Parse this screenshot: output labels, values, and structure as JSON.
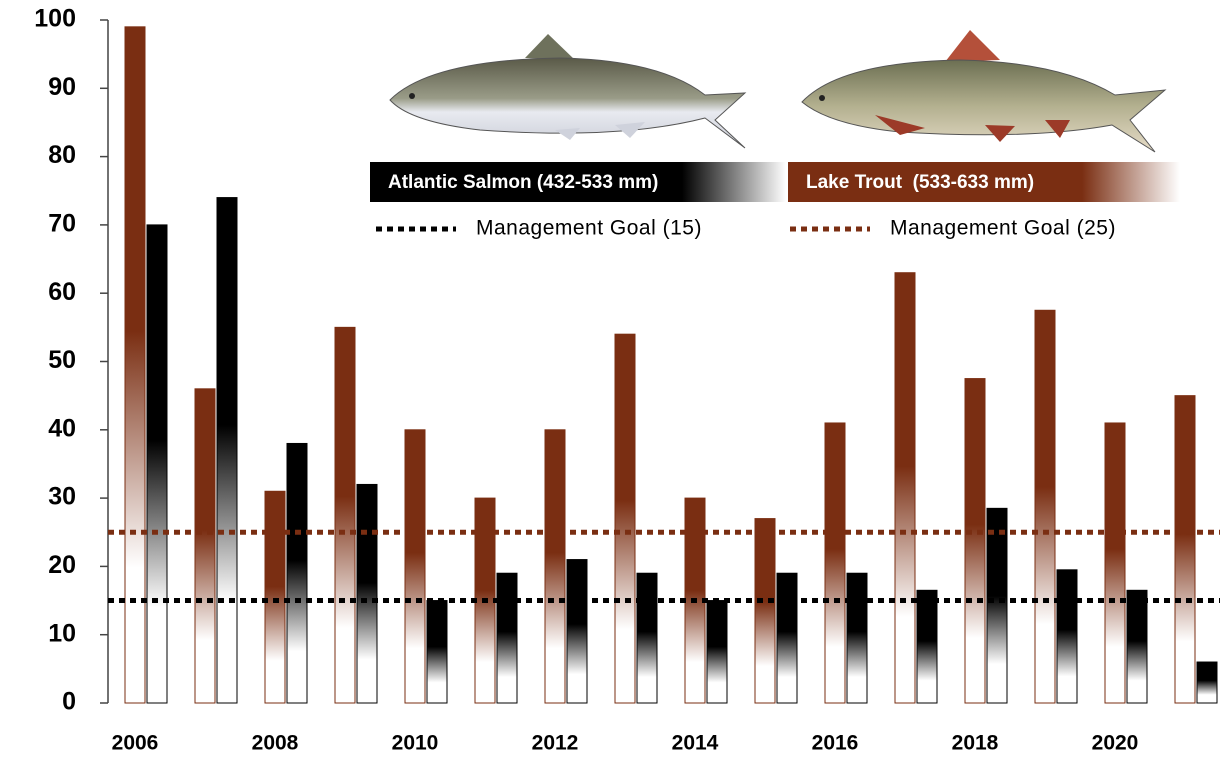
{
  "chart_data": {
    "type": "bar",
    "categories": [
      "2006",
      null,
      "2008",
      null,
      "2010",
      null,
      "2012",
      null,
      "2014",
      null,
      "2016",
      null,
      "2018",
      null,
      "2020",
      null
    ],
    "series": [
      {
        "name": "Atlantic Salmon (432-533 mm)",
        "color": "#000000",
        "values": [
          70,
          74,
          38,
          32,
          15,
          19,
          21,
          19,
          15,
          19,
          19,
          16.5,
          28.5,
          19.5,
          16.5,
          6
        ]
      },
      {
        "name": "Lake Trout  (533-633 mm)",
        "color": "#7a2e12",
        "values": [
          99,
          46,
          31,
          55,
          40,
          30,
          40,
          54,
          30,
          27,
          41,
          63,
          47.5,
          57.5,
          41,
          45
        ]
      }
    ],
    "goals": [
      {
        "name": "Management Goal (15)",
        "value": 15,
        "color": "#000000"
      },
      {
        "name": "Management Goal (25)",
        "value": 25,
        "color": "#7a2e12"
      }
    ],
    "ylim": [
      0,
      100
    ],
    "yticks": [
      0,
      10,
      20,
      30,
      40,
      50,
      60,
      70,
      80,
      90,
      100
    ]
  }
}
